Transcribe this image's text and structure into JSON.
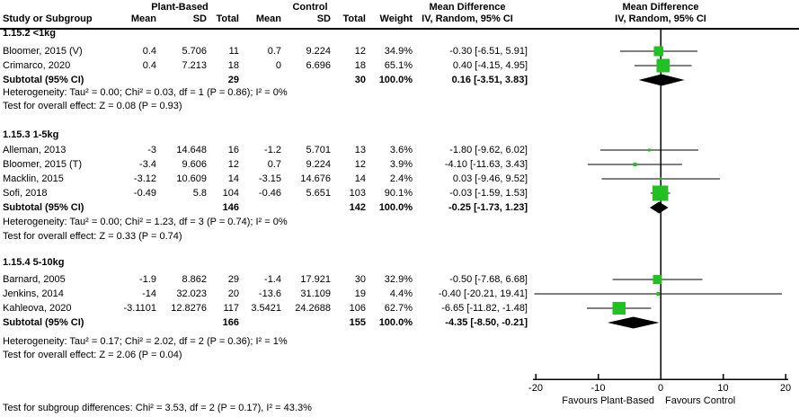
{
  "colors": {
    "marker_green": "#22c022",
    "diamond_black": "#000000",
    "line_black": "#000000",
    "text": "#000000",
    "background": "#ffffff"
  },
  "header": {
    "study_col": "Study or Subgroup",
    "group_plant": "Plant-Based",
    "group_control": "Control",
    "cols": {
      "mean": "Mean",
      "sd": "SD",
      "total": "Total",
      "weight": "Weight"
    },
    "md_title": "Mean Difference",
    "md_sub": "IV, Random, 95% CI",
    "plot_title": "Mean Difference",
    "plot_sub": "IV, Random, 95% CI"
  },
  "chart_data": {
    "type": "scatter",
    "variant": "forest-plot",
    "title": "Mean Difference, IV, Random, 95% CI",
    "xlim": [
      -20,
      20
    ],
    "xticks": [
      "-20",
      "-10",
      "0",
      "10",
      "20"
    ],
    "xtick_values": [
      -20,
      -10,
      0,
      10,
      20
    ],
    "favours_left": "Favours Plant-Based",
    "favours_right": "Favours Control",
    "subgroups": [
      {
        "title": "1.15.2 <1kg",
        "studies": [
          {
            "name": "Bloomer, 2015 (V)",
            "mean1": "0.4",
            "sd1": "5.706",
            "n1": "11",
            "mean2": "0.7",
            "sd2": "9.224",
            "n2": "12",
            "weight": "34.9%",
            "weight_val": 34.9,
            "md": -0.3,
            "ci_low": -6.51,
            "ci_high": 5.91,
            "md_text": "-0.30 [-6.51, 5.91]"
          },
          {
            "name": "Crimarco, 2020",
            "mean1": "0.4",
            "sd1": "7.213",
            "n1": "18",
            "mean2": "0",
            "sd2": "6.696",
            "n2": "18",
            "weight": "65.1%",
            "weight_val": 65.1,
            "md": 0.4,
            "ci_low": -4.15,
            "ci_high": 4.95,
            "md_text": "0.40 [-4.15, 4.95]"
          }
        ],
        "subtotal": {
          "label": "Subtotal (95% CI)",
          "n1": "29",
          "n2": "30",
          "weight": "100.0%",
          "md": 0.16,
          "ci_low": -3.51,
          "ci_high": 3.83,
          "md_text": "0.16 [-3.51, 3.83]"
        },
        "heterogeneity": "Heterogeneity: Tau² = 0.00; Chi² = 0.03, df = 1 (P = 0.86); I² = 0%",
        "overall_effect": "Test for overall effect: Z = 0.08 (P = 0.93)"
      },
      {
        "title": "1.15.3 1-5kg",
        "studies": [
          {
            "name": "Alleman, 2013",
            "mean1": "-3",
            "sd1": "14.648",
            "n1": "16",
            "mean2": "-1.2",
            "sd2": "5.701",
            "n2": "13",
            "weight": "3.6%",
            "weight_val": 3.6,
            "md": -1.8,
            "ci_low": -9.62,
            "ci_high": 6.02,
            "md_text": "-1.80 [-9.62, 6.02]"
          },
          {
            "name": "Bloomer, 2015 (T)",
            "mean1": "-3.4",
            "sd1": "9.606",
            "n1": "12",
            "mean2": "0.7",
            "sd2": "9.224",
            "n2": "12",
            "weight": "3.9%",
            "weight_val": 3.9,
            "md": -4.1,
            "ci_low": -11.63,
            "ci_high": 3.43,
            "md_text": "-4.10 [-11.63, 3.43]"
          },
          {
            "name": "Macklin, 2015",
            "mean1": "-3.12",
            "sd1": "10.609",
            "n1": "14",
            "mean2": "-3.15",
            "sd2": "14.676",
            "n2": "14",
            "weight": "2.4%",
            "weight_val": 2.4,
            "md": 0.03,
            "ci_low": -9.46,
            "ci_high": 9.52,
            "md_text": "0.03 [-9.46, 9.52]"
          },
          {
            "name": "Sofi, 2018",
            "mean1": "-0.49",
            "sd1": "5.8",
            "n1": "104",
            "mean2": "-0.46",
            "sd2": "5.651",
            "n2": "103",
            "weight": "90.1%",
            "weight_val": 90.1,
            "md": -0.03,
            "ci_low": -1.59,
            "ci_high": 1.53,
            "md_text": "-0.03 [-1.59, 1.53]"
          }
        ],
        "subtotal": {
          "label": "Subtotal (95% CI)",
          "n1": "146",
          "n2": "142",
          "weight": "100.0%",
          "md": -0.25,
          "ci_low": -1.73,
          "ci_high": 1.23,
          "md_text": "-0.25 [-1.73, 1.23]"
        },
        "heterogeneity": "Heterogeneity: Tau² = 0.00; Chi² = 1.23, df = 3 (P = 0.74); I² = 0%",
        "overall_effect": "Test for overall effect: Z = 0.33 (P = 0.74)"
      },
      {
        "title": "1.15.4 5-10kg",
        "studies": [
          {
            "name": "Barnard, 2005",
            "mean1": "-1.9",
            "sd1": "8.862",
            "n1": "29",
            "mean2": "-1.4",
            "sd2": "17.921",
            "n2": "30",
            "weight": "32.9%",
            "weight_val": 32.9,
            "md": -0.5,
            "ci_low": -7.68,
            "ci_high": 6.68,
            "md_text": "-0.50 [-7.68, 6.68]"
          },
          {
            "name": "Jenkins, 2014",
            "mean1": "-14",
            "sd1": "32.023",
            "n1": "20",
            "mean2": "-13.6",
            "sd2": "31.109",
            "n2": "19",
            "weight": "4.4%",
            "weight_val": 4.4,
            "md": -0.4,
            "ci_low": -20.21,
            "ci_high": 19.41,
            "md_text": "-0.40 [-20.21, 19.41]"
          },
          {
            "name": "Kahleova, 2020",
            "mean1": "-3.1101",
            "sd1": "12.8276",
            "n1": "117",
            "mean2": "3.5421",
            "sd2": "24.2688",
            "n2": "106",
            "weight": "62.7%",
            "weight_val": 62.7,
            "md": -6.65,
            "ci_low": -11.82,
            "ci_high": -1.48,
            "md_text": "-6.65 [-11.82, -1.48]"
          }
        ],
        "subtotal": {
          "label": "Subtotal (95% CI)",
          "n1": "166",
          "n2": "155",
          "weight": "100.0%",
          "md": -4.35,
          "ci_low": -8.5,
          "ci_high": -0.21,
          "md_text": "-4.35 [-8.50, -0.21]"
        },
        "heterogeneity": "Heterogeneity: Tau² = 0.17; Chi² = 2.02, df = 2 (P = 0.36); I² = 1%",
        "overall_effect": "Test for overall effect: Z = 2.06 (P = 0.04)"
      }
    ],
    "subgroup_difference": "Test for subgroup differences: Chi² = 3.53, df = 2 (P = 0.17), I² = 43.3%"
  }
}
